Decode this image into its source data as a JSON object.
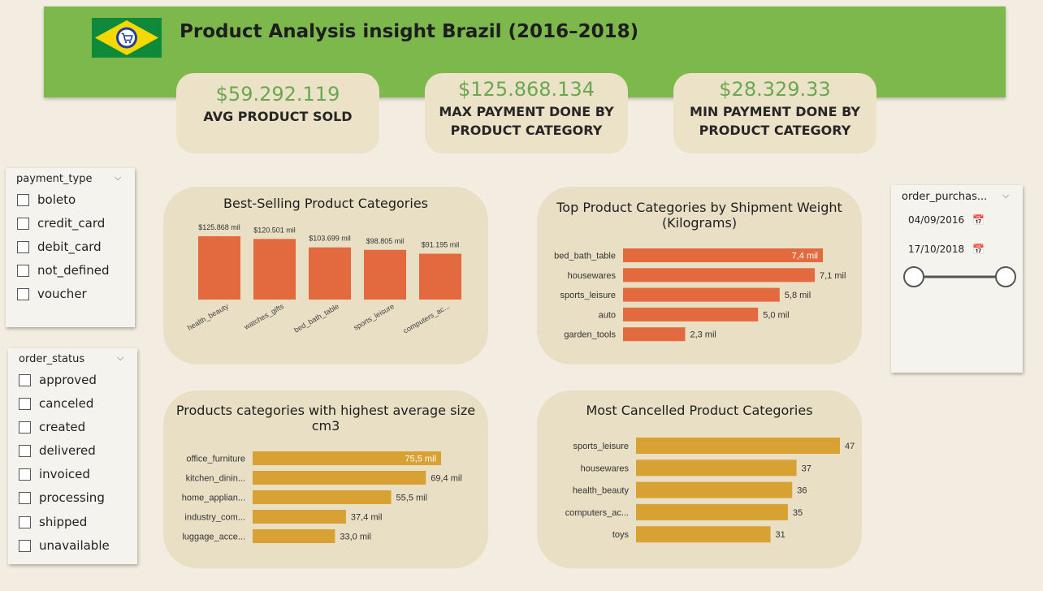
{
  "header": {
    "title": "Product Analysis insight Brazil (2016–2018)"
  },
  "kpis": [
    {
      "value": "$59.292.119",
      "label": "AVG PRODUCT SOLD"
    },
    {
      "value": "$125.868.134",
      "label_line1": "MAX PAYMENT DONE BY",
      "label_line2": "PRODUCT CATEGORY"
    },
    {
      "value": "$28.329.33",
      "label_line1": "MIN PAYMENT DONE BY",
      "label_line2": "PRODUCT CATEGORY"
    }
  ],
  "payment_slicer": {
    "title": "payment_type",
    "options": [
      "boleto",
      "credit_card",
      "debit_card",
      "not_defined",
      "voucher"
    ]
  },
  "order_slicer": {
    "title": "order_status",
    "options": [
      "approved",
      "canceled",
      "created",
      "delivered",
      "invoiced",
      "processing",
      "shipped",
      "unavailable"
    ]
  },
  "date_slicer": {
    "title": "order_purchas...",
    "start": "04/09/2016",
    "end": "17/10/2018"
  },
  "colors": {
    "orange": "#e3693f",
    "gold": "#d7a233",
    "green": "#7db84c",
    "panel": "#e8dfc5"
  },
  "chart_data": [
    {
      "type": "bar",
      "title": "Best-Selling Product Categories",
      "categories": [
        "health_beauty",
        "watches_gifts",
        "bed_bath_table",
        "sports_leisure",
        "computers_ac..."
      ],
      "values": [
        125.868,
        120.501,
        103.699,
        98.805,
        91.195
      ],
      "labels": [
        "$125.868 mil",
        "$120.501 mil",
        "$103.699 mil",
        "$98.805 mil",
        "$91.195 mil"
      ]
    },
    {
      "type": "bar",
      "orientation": "horizontal",
      "title_line1": "Top Product Categories by Shipment Weight",
      "title_line2": "(Kilograms)",
      "categories": [
        "bed_bath_table",
        "housewares",
        "sports_leisure",
        "auto",
        "garden_tools"
      ],
      "values": [
        7.4,
        7.1,
        5.8,
        5.0,
        2.3
      ],
      "labels": [
        "7,4 mil",
        "7,1 mil",
        "5,8 mil",
        "5,0 mil",
        "2,3 mil"
      ]
    },
    {
      "type": "bar",
      "orientation": "horizontal",
      "title_line1": "Products categories with highest average size",
      "title_line2": "cm3",
      "categories": [
        "office_furniture",
        "kitchen_dinin...",
        "home_applian...",
        "industry_com...",
        "luggage_acce..."
      ],
      "values": [
        75.5,
        69.4,
        55.5,
        37.4,
        33.0
      ],
      "labels": [
        "75,5 mil",
        "69,4 mil",
        "55,5 mil",
        "37,4 mil",
        "33,0 mil"
      ]
    },
    {
      "type": "bar",
      "orientation": "horizontal",
      "title": "Most Cancelled Product Categories",
      "categories": [
        "sports_leisure",
        "housewares",
        "health_beauty",
        "computers_ac...",
        "toys"
      ],
      "values": [
        47,
        37,
        36,
        35,
        31
      ],
      "labels": [
        "47",
        "37",
        "36",
        "35",
        "31"
      ]
    }
  ]
}
